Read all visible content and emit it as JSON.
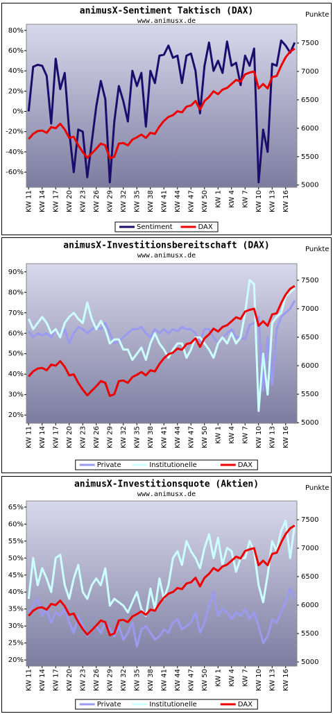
{
  "chart_data": [
    {
      "type": "line",
      "title": "animusX-Sentiment Taktisch (DAX)",
      "subtitle": "www.animusx.de",
      "y2_label": "Punkte",
      "categories": [
        "KW 11",
        null,
        null,
        "KW 14",
        null,
        null,
        "KW 17",
        null,
        null,
        "KW 20",
        null,
        null,
        "KW 23",
        null,
        null,
        "KW 26",
        null,
        null,
        "KW 29",
        null,
        null,
        "KW 32",
        null,
        null,
        "KW 35",
        null,
        null,
        "KW 38",
        null,
        null,
        "KW 41",
        null,
        null,
        "KW 44",
        null,
        null,
        "KW 47",
        null,
        null,
        "KW 50",
        null,
        null,
        "KW 1",
        null,
        null,
        "KW 4",
        null,
        null,
        "KW 7",
        null,
        null,
        "KW 10",
        null,
        null,
        "KW 13",
        null,
        null,
        "KW 16",
        null,
        null
      ],
      "series": [
        {
          "name": "Sentiment",
          "color": "#1c0c6c",
          "axis": "y",
          "values": [
            0,
            44,
            46,
            45,
            35,
            -12,
            52,
            22,
            38,
            -20,
            -60,
            -18,
            -20,
            -65,
            -30,
            5,
            30,
            12,
            -70,
            -10,
            25,
            10,
            -10,
            40,
            25,
            38,
            -15,
            40,
            28,
            55,
            56,
            65,
            53,
            55,
            28,
            55,
            57,
            40,
            -2,
            45,
            68,
            40,
            50,
            38,
            69,
            45,
            48,
            26,
            55,
            45,
            62,
            -70,
            -18,
            -40,
            47,
            45,
            70,
            65,
            58,
            68
          ]
        },
        {
          "name": "DAX",
          "color": "#ee0000",
          "axis": "y2",
          "values": [
            5810,
            5900,
            5950,
            5960,
            5920,
            6020,
            6000,
            6080,
            5980,
            5830,
            5850,
            5700,
            5580,
            5480,
            5560,
            5640,
            5730,
            5700,
            5470,
            5500,
            5730,
            5740,
            5700,
            5800,
            5840,
            5890,
            5830,
            5920,
            5900,
            6030,
            6130,
            6200,
            6230,
            6300,
            6280,
            6380,
            6400,
            6480,
            6330,
            6480,
            6550,
            6650,
            6600,
            6680,
            6710,
            6780,
            6850,
            6820,
            6950,
            6980,
            7000,
            6700,
            6780,
            6700,
            6900,
            6920,
            7100,
            7250,
            7350,
            7400
          ]
        }
      ],
      "ylim": [
        -75,
        86
      ],
      "yticks": [
        {
          "value": -60,
          "label": "-60%"
        },
        {
          "value": -40,
          "label": "-40%"
        },
        {
          "value": -20,
          "label": "-20%"
        },
        {
          "value": 0,
          "label": "0%"
        },
        {
          "value": 20,
          "label": "20%"
        },
        {
          "value": 40,
          "label": "40%"
        },
        {
          "value": 60,
          "label": "60%"
        },
        {
          "value": 80,
          "label": "80%"
        }
      ],
      "y2lim": [
        4960,
        7830
      ],
      "y2ticks": [
        5000,
        5500,
        6000,
        6500,
        7000,
        7500
      ],
      "legend": "bottom"
    },
    {
      "type": "line",
      "title": "animusX-Investitionsbereitschaft (DAX)",
      "subtitle": "www.animusx.de",
      "y2_label": "Punkte",
      "categories": [
        "KW 11",
        null,
        null,
        "KW 14",
        null,
        null,
        "KW 17",
        null,
        null,
        "KW 20",
        null,
        null,
        "KW 23",
        null,
        null,
        "KW 26",
        null,
        null,
        "KW 29",
        null,
        null,
        "KW 32",
        null,
        null,
        "KW 35",
        null,
        null,
        "KW 38",
        null,
        null,
        "KW 41",
        null,
        null,
        "KW 44",
        null,
        null,
        "KW 47",
        null,
        null,
        "KW 50",
        null,
        null,
        "KW 1",
        null,
        null,
        "KW 4",
        null,
        null,
        "KW 7",
        null,
        null,
        "KW 10",
        null,
        null,
        "KW 13",
        null,
        null,
        "KW 16",
        null,
        null
      ],
      "series": [
        {
          "name": "Private",
          "color": "#9a9af0",
          "axis": "y",
          "values": [
            61,
            58,
            60,
            59,
            60,
            58,
            62,
            58,
            62,
            55,
            60,
            63,
            62,
            60,
            62,
            63,
            62,
            65,
            60,
            55,
            56,
            58,
            60,
            62,
            62,
            63,
            60,
            58,
            62,
            60,
            62,
            60,
            62,
            61,
            63,
            62,
            62,
            60,
            56,
            62,
            62,
            58,
            55,
            58,
            60,
            62,
            58,
            58,
            57,
            64,
            65,
            68,
            32,
            58,
            35,
            62,
            68,
            70,
            72,
            76
          ]
        },
        {
          "name": "Institutionelle",
          "color": "#ccffff",
          "axis": "y",
          "values": [
            67,
            62,
            65,
            68,
            65,
            60,
            62,
            58,
            65,
            68,
            70,
            67,
            65,
            75,
            67,
            62,
            66,
            62,
            55,
            57,
            57,
            52,
            52,
            47,
            50,
            53,
            47,
            55,
            60,
            55,
            52,
            48,
            52,
            55,
            55,
            48,
            52,
            58,
            58,
            55,
            52,
            48,
            55,
            58,
            55,
            60,
            55,
            58,
            70,
            86,
            84,
            22,
            50,
            30,
            65,
            68,
            70,
            78,
            80,
            82
          ]
        },
        {
          "name": "DAX",
          "color": "#ee0000",
          "axis": "y2",
          "values": [
            5810,
            5900,
            5950,
            5960,
            5920,
            6020,
            6000,
            6080,
            5980,
            5830,
            5850,
            5700,
            5580,
            5480,
            5560,
            5640,
            5730,
            5700,
            5470,
            5500,
            5730,
            5740,
            5700,
            5800,
            5840,
            5890,
            5830,
            5920,
            5900,
            6030,
            6130,
            6200,
            6230,
            6300,
            6280,
            6380,
            6400,
            6480,
            6330,
            6480,
            6550,
            6650,
            6600,
            6680,
            6710,
            6780,
            6850,
            6820,
            6950,
            6980,
            7000,
            6700,
            6780,
            6700,
            6900,
            6920,
            7100,
            7250,
            7350,
            7400
          ]
        }
      ],
      "ylim": [
        16,
        94
      ],
      "yticks": [
        {
          "value": 20,
          "label": "20%"
        },
        {
          "value": 30,
          "label": "30%"
        },
        {
          "value": 40,
          "label": "40%"
        },
        {
          "value": 50,
          "label": "50%"
        },
        {
          "value": 60,
          "label": "60%"
        },
        {
          "value": 70,
          "label": "70%"
        },
        {
          "value": 80,
          "label": "80%"
        },
        {
          "value": 90,
          "label": "90%"
        }
      ],
      "y2lim": [
        4990,
        7790
      ],
      "y2ticks": [
        5000,
        5500,
        6000,
        6500,
        7000,
        7500
      ],
      "legend": "bottom"
    },
    {
      "type": "line",
      "title": "animusX-Investitionsquote (Aktien)",
      "subtitle": "www.animusx.de",
      "y2_label": "Punkte",
      "categories": [
        "KW 11",
        null,
        null,
        "KW 14",
        null,
        null,
        "KW 17",
        null,
        null,
        "KW 20",
        null,
        null,
        "KW 23",
        null,
        null,
        "KW 26",
        null,
        null,
        "KW 29",
        null,
        null,
        "KW 32",
        null,
        null,
        "KW 35",
        null,
        null,
        "KW 38",
        null,
        null,
        "KW 41",
        null,
        null,
        "KW 44",
        null,
        null,
        "KW 47",
        null,
        null,
        "KW 50",
        null,
        null,
        "KW 1",
        null,
        null,
        "KW 4",
        null,
        null,
        "KW 7",
        null,
        null,
        "KW 10",
        null,
        null,
        "KW 13",
        null,
        null,
        "KW 16",
        null,
        null
      ],
      "series": [
        {
          "name": "Private",
          "color": "#9a9af0",
          "axis": "y",
          "values": [
            34,
            36,
            38,
            33,
            35,
            31,
            34,
            33,
            35,
            31,
            28,
            33,
            30,
            27,
            29,
            30,
            28,
            31,
            29,
            27,
            30,
            26,
            28,
            31,
            24,
            29,
            30,
            28,
            26,
            27,
            29,
            28,
            31,
            32,
            29,
            30,
            31,
            34,
            28,
            31,
            36,
            40,
            33,
            35,
            34,
            32,
            34,
            33,
            35,
            32,
            34,
            30,
            25,
            27,
            32,
            31,
            34,
            37,
            41,
            38
          ]
        },
        {
          "name": "Institutionelle",
          "color": "#ccffff",
          "axis": "y",
          "values": [
            38,
            50,
            42,
            47,
            44,
            40,
            50,
            51,
            42,
            38,
            44,
            48,
            40,
            38,
            42,
            44,
            42,
            47,
            36,
            38,
            37,
            36,
            34,
            37,
            40,
            35,
            33,
            41,
            35,
            44,
            38,
            42,
            50,
            52,
            48,
            55,
            52,
            50,
            47,
            53,
            57,
            50,
            56,
            48,
            53,
            52,
            46,
            50,
            50,
            55,
            52,
            42,
            37,
            45,
            55,
            52,
            58,
            61,
            50,
            60
          ]
        },
        {
          "name": "DAX",
          "color": "#ee0000",
          "axis": "y2",
          "values": [
            5810,
            5900,
            5950,
            5960,
            5920,
            6020,
            6000,
            6080,
            5980,
            5830,
            5850,
            5700,
            5580,
            5480,
            5560,
            5640,
            5730,
            5700,
            5470,
            5500,
            5730,
            5740,
            5700,
            5800,
            5840,
            5890,
            5830,
            5920,
            5900,
            6030,
            6130,
            6200,
            6230,
            6300,
            6280,
            6380,
            6400,
            6480,
            6330,
            6480,
            6550,
            6650,
            6600,
            6680,
            6710,
            6780,
            6850,
            6820,
            6950,
            6980,
            7000,
            6700,
            6780,
            6700,
            6900,
            6920,
            7100,
            7250,
            7350,
            7400
          ]
        }
      ],
      "ylim": [
        18.2,
        66.8
      ],
      "yticks": [
        {
          "value": 20,
          "label": "20%"
        },
        {
          "value": 25,
          "label": "25%"
        },
        {
          "value": 30,
          "label": "30%"
        },
        {
          "value": 35,
          "label": "35%"
        },
        {
          "value": 40,
          "label": "40%"
        },
        {
          "value": 45,
          "label": "45%"
        },
        {
          "value": 50,
          "label": "50%"
        },
        {
          "value": 55,
          "label": "55%"
        },
        {
          "value": 60,
          "label": "60%"
        },
        {
          "value": 65,
          "label": "65%"
        }
      ],
      "y2lim": [
        4927,
        7830
      ],
      "y2ticks": [
        5000,
        5500,
        6000,
        6500,
        7000,
        7500
      ],
      "legend": "bottom"
    }
  ]
}
